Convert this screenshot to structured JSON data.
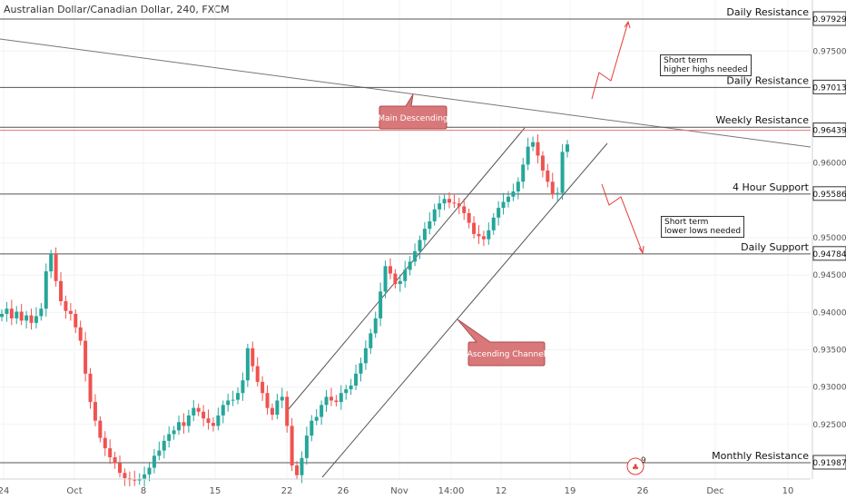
{
  "header": {
    "title": "Australian Dollar/Canadian Dollar, 240, FXCM"
  },
  "colors": {
    "up": "#26a69a",
    "down": "#ef5350",
    "level_line": "#555555",
    "price_line": "#e57373",
    "callout": "#d9787a",
    "arrow": "#e53935",
    "axis_text": "#555555"
  },
  "chart_data": {
    "type": "candlestick",
    "symbol": "AUDCAD",
    "timeframe": "240",
    "ylim": [
      0.9165,
      0.9805
    ],
    "y_ticks": [
      "0.92500",
      "0.93000",
      "0.93500",
      "0.94000",
      "0.94500",
      "0.95000",
      "0.96000",
      "0.97500"
    ],
    "x_ticks": [
      "24",
      "Oct",
      "8",
      "15",
      "22",
      "26",
      "Nov",
      "14:00",
      "12",
      "19",
      "26",
      "Dec",
      "10"
    ],
    "levels": [
      {
        "name": "Daily Resistance",
        "price": 0.97929,
        "label": "0.97929"
      },
      {
        "name": "Daily Resistance",
        "price": 0.97013,
        "label": "0.97013"
      },
      {
        "name": "Weekly Resistance",
        "price": 0.9648,
        "label": ""
      },
      {
        "name": "4 Hour Support",
        "price": 0.95586,
        "label": "0.95586"
      },
      {
        "name": "Daily Support",
        "price": 0.94784,
        "label": "0.94784"
      },
      {
        "name": "Monthly Resistance",
        "price": 0.91987,
        "label": "0.91987"
      }
    ],
    "current_price": {
      "value": 0.96439,
      "label": "0.96439"
    },
    "annotations": [
      {
        "text": "Main Descending",
        "kind": "callout"
      },
      {
        "text": "Ascending Channel",
        "kind": "callout"
      },
      {
        "text": "Short term\nhigher highs needed",
        "kind": "note"
      },
      {
        "text": "Short term\nlower lows needed",
        "kind": "note"
      }
    ],
    "series": [
      {
        "name": "",
        "values": [
          0.9398,
          0.9405,
          0.9392,
          0.9401,
          0.9389,
          0.9396,
          0.9386,
          0.9395,
          0.9405,
          0.9455,
          0.9478,
          0.9442,
          0.9415,
          0.9402,
          0.9398,
          0.938,
          0.9362,
          0.9318,
          0.928,
          0.9255,
          0.9232,
          0.9218,
          0.9206,
          0.9198,
          0.9185,
          0.9178,
          0.9176,
          0.9175,
          0.9177,
          0.9183,
          0.9192,
          0.9208,
          0.9215,
          0.9228,
          0.9237,
          0.9242,
          0.9253,
          0.9248,
          0.9262,
          0.9272,
          0.9267,
          0.9258,
          0.9252,
          0.9248,
          0.9262,
          0.9276,
          0.9282,
          0.9283,
          0.9292,
          0.9309,
          0.9352,
          0.9328,
          0.9307,
          0.9292,
          0.9272,
          0.9263,
          0.9282,
          0.9287,
          0.9248,
          0.9195,
          0.9182,
          0.9205,
          0.9235,
          0.9255,
          0.926,
          0.9276,
          0.9287,
          0.9282,
          0.928,
          0.9292,
          0.9297,
          0.9302,
          0.9318,
          0.9332,
          0.9352,
          0.9372,
          0.9392,
          0.9428,
          0.9462,
          0.9452,
          0.9438,
          0.9442,
          0.9457,
          0.9468,
          0.9482,
          0.9497,
          0.9512,
          0.9522,
          0.9538,
          0.9546,
          0.9552,
          0.9547,
          0.9546,
          0.9542,
          0.9533,
          0.952,
          0.9505,
          0.9502,
          0.9498,
          0.951,
          0.9527,
          0.954,
          0.9548,
          0.9555,
          0.9562,
          0.9575,
          0.9598,
          0.9622,
          0.9628,
          0.961,
          0.959,
          0.9575,
          0.9558,
          0.956,
          0.9615,
          0.9625
        ]
      }
    ]
  },
  "badge": {
    "count": "9"
  }
}
